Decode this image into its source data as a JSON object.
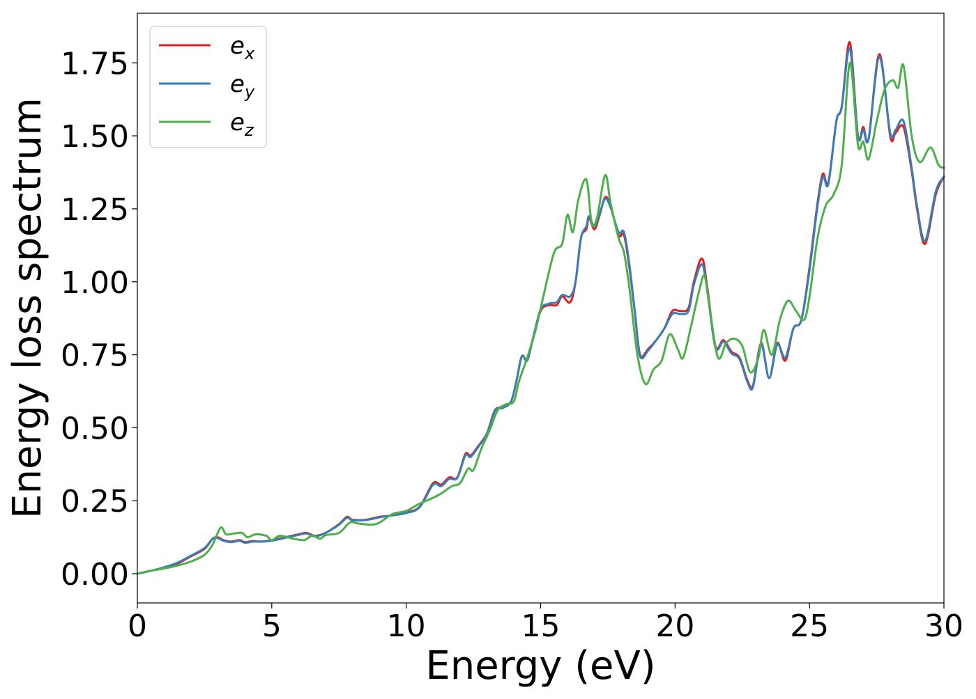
{
  "chart_data": {
    "type": "line",
    "xlabel": "Energy (eV)",
    "ylabel": "Energy loss spectrum",
    "xlim": [
      0,
      30
    ],
    "ylim": [
      -0.1,
      1.92
    ],
    "xticks": [
      0,
      5,
      10,
      15,
      20,
      25,
      30
    ],
    "xtick_labels": [
      "0",
      "5",
      "10",
      "15",
      "20",
      "25",
      "30"
    ],
    "yticks": [
      0.0,
      0.25,
      0.5,
      0.75,
      1.0,
      1.25,
      1.5,
      1.75
    ],
    "ytick_labels": [
      "0.00",
      "0.25",
      "0.50",
      "0.75",
      "1.00",
      "1.25",
      "1.50",
      "1.75"
    ],
    "grid": false,
    "legend_position": "top-left",
    "series": [
      {
        "name": "e_x",
        "label_base": "e",
        "label_sub": "x",
        "color": "#e41a1c",
        "points": [
          [
            0,
            0
          ],
          [
            0.5,
            0.01
          ],
          [
            1,
            0.02
          ],
          [
            1.5,
            0.035
          ],
          [
            2,
            0.06
          ],
          [
            2.5,
            0.085
          ],
          [
            2.8,
            0.12
          ],
          [
            3,
            0.125
          ],
          [
            3.2,
            0.115
          ],
          [
            3.5,
            0.11
          ],
          [
            3.8,
            0.115
          ],
          [
            4,
            0.108
          ],
          [
            4.3,
            0.112
          ],
          [
            4.6,
            0.11
          ],
          [
            5,
            0.115
          ],
          [
            5.5,
            0.125
          ],
          [
            6,
            0.135
          ],
          [
            6.3,
            0.14
          ],
          [
            6.6,
            0.13
          ],
          [
            7,
            0.14
          ],
          [
            7.5,
            0.17
          ],
          [
            7.8,
            0.195
          ],
          [
            8,
            0.185
          ],
          [
            8.5,
            0.185
          ],
          [
            9,
            0.195
          ],
          [
            9.5,
            0.2
          ],
          [
            10,
            0.21
          ],
          [
            10.5,
            0.23
          ],
          [
            11,
            0.31
          ],
          [
            11.3,
            0.305
          ],
          [
            11.6,
            0.33
          ],
          [
            11.9,
            0.33
          ],
          [
            12.2,
            0.41
          ],
          [
            12.4,
            0.405
          ],
          [
            12.7,
            0.44
          ],
          [
            13,
            0.48
          ],
          [
            13.3,
            0.56
          ],
          [
            13.6,
            0.57
          ],
          [
            13.9,
            0.59
          ],
          [
            14.1,
            0.66
          ],
          [
            14.3,
            0.745
          ],
          [
            14.5,
            0.73
          ],
          [
            14.7,
            0.8
          ],
          [
            15,
            0.9
          ],
          [
            15.3,
            0.92
          ],
          [
            15.6,
            0.92
          ],
          [
            15.8,
            0.95
          ],
          [
            16.1,
            0.93
          ],
          [
            16.3,
            1.0
          ],
          [
            16.5,
            1.15
          ],
          [
            16.7,
            1.18
          ],
          [
            16.8,
            1.22
          ],
          [
            17,
            1.18
          ],
          [
            17.2,
            1.23
          ],
          [
            17.4,
            1.29
          ],
          [
            17.6,
            1.26
          ],
          [
            17.9,
            1.16
          ],
          [
            18.1,
            1.16
          ],
          [
            18.3,
            1.05
          ],
          [
            18.5,
            0.9
          ],
          [
            18.7,
            0.75
          ],
          [
            19,
            0.77
          ],
          [
            19.3,
            0.8
          ],
          [
            19.6,
            0.84
          ],
          [
            19.9,
            0.9
          ],
          [
            20.2,
            0.9
          ],
          [
            20.5,
            0.91
          ],
          [
            20.7,
            1.0
          ],
          [
            21,
            1.08
          ],
          [
            21.2,
            0.98
          ],
          [
            21.5,
            0.78
          ],
          [
            21.8,
            0.8
          ],
          [
            22.1,
            0.76
          ],
          [
            22.4,
            0.74
          ],
          [
            22.7,
            0.66
          ],
          [
            22.9,
            0.645
          ],
          [
            23.2,
            0.79
          ],
          [
            23.5,
            0.67
          ],
          [
            23.8,
            0.79
          ],
          [
            24.1,
            0.73
          ],
          [
            24.4,
            0.84
          ],
          [
            24.7,
            0.87
          ],
          [
            25,
            1.05
          ],
          [
            25.3,
            1.27
          ],
          [
            25.5,
            1.37
          ],
          [
            25.7,
            1.34
          ],
          [
            26,
            1.55
          ],
          [
            26.2,
            1.6
          ],
          [
            26.5,
            1.82
          ],
          [
            26.8,
            1.5
          ],
          [
            27,
            1.53
          ],
          [
            27.2,
            1.49
          ],
          [
            27.6,
            1.78
          ],
          [
            28,
            1.5
          ],
          [
            28.2,
            1.51
          ],
          [
            28.5,
            1.53
          ],
          [
            28.8,
            1.38
          ],
          [
            29,
            1.25
          ],
          [
            29.3,
            1.13
          ],
          [
            29.7,
            1.3
          ],
          [
            30,
            1.36
          ]
        ]
      },
      {
        "name": "e_y",
        "label_base": "e",
        "label_sub": "y",
        "color": "#377eb8",
        "points": [
          [
            0,
            0
          ],
          [
            0.5,
            0.01
          ],
          [
            1,
            0.022
          ],
          [
            1.5,
            0.038
          ],
          [
            2,
            0.062
          ],
          [
            2.5,
            0.088
          ],
          [
            2.8,
            0.12
          ],
          [
            3,
            0.122
          ],
          [
            3.2,
            0.113
          ],
          [
            3.5,
            0.108
          ],
          [
            3.8,
            0.113
          ],
          [
            4,
            0.106
          ],
          [
            4.3,
            0.11
          ],
          [
            4.6,
            0.11
          ],
          [
            5,
            0.113
          ],
          [
            5.5,
            0.123
          ],
          [
            6,
            0.133
          ],
          [
            6.3,
            0.138
          ],
          [
            6.6,
            0.128
          ],
          [
            7,
            0.14
          ],
          [
            7.5,
            0.168
          ],
          [
            7.8,
            0.192
          ],
          [
            8,
            0.183
          ],
          [
            8.5,
            0.184
          ],
          [
            9,
            0.193
          ],
          [
            9.5,
            0.2
          ],
          [
            10,
            0.208
          ],
          [
            10.5,
            0.228
          ],
          [
            11,
            0.305
          ],
          [
            11.3,
            0.3
          ],
          [
            11.6,
            0.325
          ],
          [
            11.9,
            0.328
          ],
          [
            12.2,
            0.405
          ],
          [
            12.4,
            0.4
          ],
          [
            12.7,
            0.437
          ],
          [
            13,
            0.478
          ],
          [
            13.3,
            0.558
          ],
          [
            13.6,
            0.568
          ],
          [
            13.9,
            0.59
          ],
          [
            14.1,
            0.66
          ],
          [
            14.3,
            0.745
          ],
          [
            14.5,
            0.73
          ],
          [
            14.7,
            0.8
          ],
          [
            15,
            0.905
          ],
          [
            15.3,
            0.925
          ],
          [
            15.6,
            0.93
          ],
          [
            15.8,
            0.955
          ],
          [
            16.1,
            0.95
          ],
          [
            16.3,
            1.0
          ],
          [
            16.5,
            1.15
          ],
          [
            16.7,
            1.19
          ],
          [
            16.8,
            1.225
          ],
          [
            17,
            1.19
          ],
          [
            17.2,
            1.235
          ],
          [
            17.4,
            1.285
          ],
          [
            17.6,
            1.255
          ],
          [
            17.9,
            1.17
          ],
          [
            18.1,
            1.17
          ],
          [
            18.3,
            1.06
          ],
          [
            18.5,
            0.9
          ],
          [
            18.7,
            0.745
          ],
          [
            19,
            0.765
          ],
          [
            19.3,
            0.8
          ],
          [
            19.6,
            0.84
          ],
          [
            19.9,
            0.89
          ],
          [
            20.2,
            0.89
          ],
          [
            20.5,
            0.9
          ],
          [
            20.7,
            0.99
          ],
          [
            21,
            1.06
          ],
          [
            21.2,
            0.97
          ],
          [
            21.5,
            0.775
          ],
          [
            21.8,
            0.795
          ],
          [
            22.1,
            0.755
          ],
          [
            22.4,
            0.735
          ],
          [
            22.7,
            0.655
          ],
          [
            22.9,
            0.64
          ],
          [
            23.2,
            0.785
          ],
          [
            23.5,
            0.67
          ],
          [
            23.8,
            0.785
          ],
          [
            24.1,
            0.74
          ],
          [
            24.4,
            0.84
          ],
          [
            24.7,
            0.87
          ],
          [
            25,
            1.04
          ],
          [
            25.3,
            1.26
          ],
          [
            25.5,
            1.36
          ],
          [
            25.7,
            1.335
          ],
          [
            26,
            1.55
          ],
          [
            26.2,
            1.6
          ],
          [
            26.5,
            1.8
          ],
          [
            26.8,
            1.5
          ],
          [
            27,
            1.52
          ],
          [
            27.2,
            1.49
          ],
          [
            27.6,
            1.77
          ],
          [
            28,
            1.51
          ],
          [
            28.2,
            1.52
          ],
          [
            28.5,
            1.55
          ],
          [
            28.8,
            1.39
          ],
          [
            29,
            1.26
          ],
          [
            29.3,
            1.14
          ],
          [
            29.7,
            1.31
          ],
          [
            30,
            1.36
          ]
        ]
      },
      {
        "name": "e_z",
        "label_base": "e",
        "label_sub": "z",
        "color": "#4daf4a",
        "points": [
          [
            0,
            0
          ],
          [
            0.5,
            0.01
          ],
          [
            1,
            0.018
          ],
          [
            1.5,
            0.028
          ],
          [
            2,
            0.042
          ],
          [
            2.5,
            0.065
          ],
          [
            2.8,
            0.1
          ],
          [
            3.1,
            0.158
          ],
          [
            3.3,
            0.135
          ],
          [
            3.6,
            0.138
          ],
          [
            3.9,
            0.14
          ],
          [
            4.1,
            0.125
          ],
          [
            4.4,
            0.135
          ],
          [
            4.8,
            0.13
          ],
          [
            5,
            0.115
          ],
          [
            5.3,
            0.13
          ],
          [
            5.8,
            0.12
          ],
          [
            6.2,
            0.115
          ],
          [
            6.5,
            0.13
          ],
          [
            6.8,
            0.12
          ],
          [
            7,
            0.132
          ],
          [
            7.5,
            0.14
          ],
          [
            7.9,
            0.175
          ],
          [
            8.2,
            0.172
          ],
          [
            8.7,
            0.168
          ],
          [
            9,
            0.175
          ],
          [
            9.5,
            0.205
          ],
          [
            10,
            0.215
          ],
          [
            10.5,
            0.24
          ],
          [
            11,
            0.26
          ],
          [
            11.3,
            0.275
          ],
          [
            11.7,
            0.3
          ],
          [
            12,
            0.31
          ],
          [
            12.3,
            0.36
          ],
          [
            12.5,
            0.355
          ],
          [
            12.8,
            0.43
          ],
          [
            13.1,
            0.49
          ],
          [
            13.4,
            0.56
          ],
          [
            13.7,
            0.58
          ],
          [
            14,
            0.59
          ],
          [
            14.2,
            0.66
          ],
          [
            14.5,
            0.74
          ],
          [
            14.8,
            0.83
          ],
          [
            15.1,
            0.95
          ],
          [
            15.5,
            1.1
          ],
          [
            15.8,
            1.13
          ],
          [
            16,
            1.23
          ],
          [
            16.2,
            1.17
          ],
          [
            16.4,
            1.28
          ],
          [
            16.7,
            1.35
          ],
          [
            16.9,
            1.2
          ],
          [
            17.1,
            1.22
          ],
          [
            17.4,
            1.365
          ],
          [
            17.6,
            1.27
          ],
          [
            17.9,
            1.15
          ],
          [
            18.1,
            1.1
          ],
          [
            18.3,
            0.98
          ],
          [
            18.6,
            0.75
          ],
          [
            18.9,
            0.65
          ],
          [
            19.2,
            0.7
          ],
          [
            19.5,
            0.73
          ],
          [
            19.8,
            0.82
          ],
          [
            20.1,
            0.77
          ],
          [
            20.3,
            0.74
          ],
          [
            20.6,
            0.85
          ],
          [
            20.9,
            0.97
          ],
          [
            21.1,
            1.02
          ],
          [
            21.3,
            0.9
          ],
          [
            21.6,
            0.74
          ],
          [
            21.9,
            0.79
          ],
          [
            22.2,
            0.805
          ],
          [
            22.5,
            0.78
          ],
          [
            22.8,
            0.69
          ],
          [
            23.1,
            0.74
          ],
          [
            23.3,
            0.835
          ],
          [
            23.6,
            0.75
          ],
          [
            23.9,
            0.87
          ],
          [
            24.2,
            0.935
          ],
          [
            24.5,
            0.9
          ],
          [
            24.8,
            0.87
          ],
          [
            25,
            0.95
          ],
          [
            25.3,
            1.15
          ],
          [
            25.6,
            1.26
          ],
          [
            25.9,
            1.3
          ],
          [
            26.2,
            1.4
          ],
          [
            26.5,
            1.75
          ],
          [
            26.8,
            1.47
          ],
          [
            27,
            1.48
          ],
          [
            27.2,
            1.42
          ],
          [
            27.5,
            1.55
          ],
          [
            27.8,
            1.66
          ],
          [
            28.1,
            1.69
          ],
          [
            28.3,
            1.665
          ],
          [
            28.5,
            1.74
          ],
          [
            28.8,
            1.5
          ],
          [
            29.1,
            1.41
          ],
          [
            29.5,
            1.46
          ],
          [
            29.8,
            1.4
          ],
          [
            30,
            1.39
          ]
        ]
      }
    ]
  }
}
